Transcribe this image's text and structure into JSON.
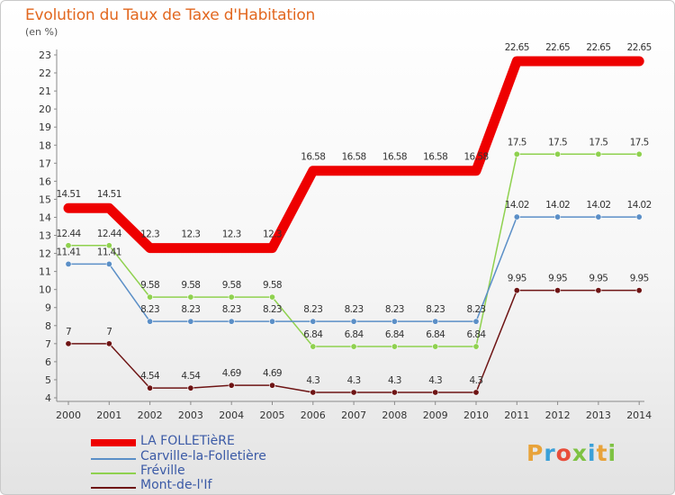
{
  "chart_data": {
    "type": "line",
    "title": "Evolution du Taux de Taxe d'Habitation",
    "ylabel": "(en %)",
    "x": [
      "2000",
      "2001",
      "2002",
      "2003",
      "2004",
      "2005",
      "2006",
      "2007",
      "2008",
      "2009",
      "2010",
      "2011",
      "2012",
      "2013",
      "2014"
    ],
    "ylim": [
      4,
      23
    ],
    "yticks": [
      "4",
      "5",
      "6",
      "7",
      "8",
      "9",
      "10",
      "11",
      "12",
      "13",
      "14",
      "15",
      "16",
      "17",
      "18",
      "19",
      "20",
      "21",
      "22",
      "23"
    ],
    "series": [
      {
        "name": "LA FOLLETièRE",
        "color": "#ee0000",
        "values": [
          14.51,
          14.51,
          12.3,
          12.3,
          12.3,
          12.3,
          16.58,
          16.58,
          16.58,
          16.58,
          16.58,
          22.65,
          22.65,
          22.65,
          22.65
        ],
        "labels": [
          "14.51",
          "14.51",
          "12.3",
          "12.3",
          "12.3",
          "12.3",
          "16.58",
          "16.58",
          "16.58",
          "16.58",
          "16.58",
          "22.65",
          "22.65",
          "22.65",
          "22.65"
        ]
      },
      {
        "name": "Carville-la-Folletière",
        "color": "#5b8fc7",
        "values": [
          11.41,
          11.41,
          8.23,
          8.23,
          8.23,
          8.23,
          8.23,
          8.23,
          8.23,
          8.23,
          8.23,
          14.02,
          14.02,
          14.02,
          14.02
        ],
        "labels": [
          "11.41",
          "11.41",
          "8.23",
          "8.23",
          "8.23",
          "8.23",
          "8.23",
          "8.23",
          "8.23",
          "8.23",
          "8.23",
          "14.02",
          "14.02",
          "14.02",
          "14.02"
        ]
      },
      {
        "name": "Fréville",
        "color": "#8fd14f",
        "values": [
          12.44,
          12.44,
          9.58,
          9.58,
          9.58,
          9.58,
          6.84,
          6.84,
          6.84,
          6.84,
          6.84,
          17.5,
          17.5,
          17.5,
          17.5
        ],
        "labels": [
          "12.44",
          "12.44",
          "9.58",
          "9.58",
          "9.58",
          "9.58",
          "6.84",
          "6.84",
          "6.84",
          "6.84",
          "6.84",
          "17.5",
          "17.5",
          "17.5",
          "17.5"
        ]
      },
      {
        "name": "Mont-de-l'If",
        "color": "#6e1414",
        "values": [
          7,
          7,
          4.54,
          4.54,
          4.69,
          4.69,
          4.3,
          4.3,
          4.3,
          4.3,
          4.3,
          9.95,
          9.95,
          9.95,
          9.95
        ],
        "labels": [
          "7",
          "7",
          "4.54",
          "4.54",
          "4.69",
          "4.69",
          "4.3",
          "4.3",
          "4.3",
          "4.3",
          "4.3",
          "9.95",
          "9.95",
          "9.95",
          "9.95"
        ]
      }
    ],
    "legend_position": "bottom-left",
    "grid": false
  },
  "logo": {
    "letters": [
      "P",
      "r",
      "o",
      "x",
      "i",
      "t",
      "i"
    ],
    "colors": [
      "#e8a33a",
      "#3aa0d8",
      "#e84d3a",
      "#7ec243",
      "#3aa0d8",
      "#e8a33a",
      "#7ec243"
    ]
  }
}
